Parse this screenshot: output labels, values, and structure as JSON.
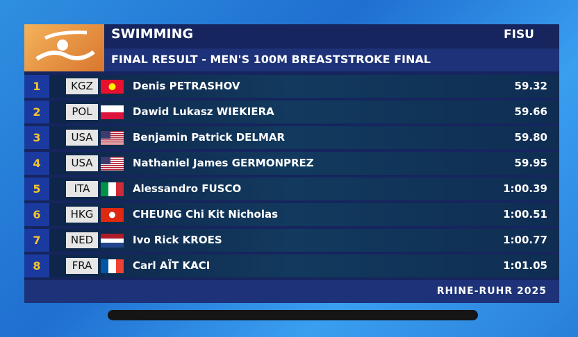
{
  "header": {
    "sport": "SWIMMING",
    "event": "FINAL RESULT - MEN'S 100M BREASTSTROKE FINAL",
    "logo": "FISU"
  },
  "results": [
    {
      "rank": "1",
      "country": "KGZ",
      "name": "Denis PETRASHOV",
      "time": "59.32"
    },
    {
      "rank": "2",
      "country": "POL",
      "name": "Dawid Lukasz WIEKIERA",
      "time": "59.66"
    },
    {
      "rank": "3",
      "country": "USA",
      "name": "Benjamin Patrick DELMAR",
      "time": "59.80"
    },
    {
      "rank": "4",
      "country": "USA",
      "name": "Nathaniel James GERMONPREZ",
      "time": "59.95"
    },
    {
      "rank": "5",
      "country": "ITA",
      "name": "Alessandro FUSCO",
      "time": "1:00.39"
    },
    {
      "rank": "6",
      "country": "HKG",
      "name": "CHEUNG Chi Kit Nicholas",
      "time": "1:00.51"
    },
    {
      "rank": "7",
      "country": "NED",
      "name": "Ivo Rick KROES",
      "time": "1:00.77"
    },
    {
      "rank": "8",
      "country": "FRA",
      "name": "Carl AÏT KACI",
      "time": "1:01.05"
    }
  ],
  "footer": "RHINE-RUHR 2025"
}
